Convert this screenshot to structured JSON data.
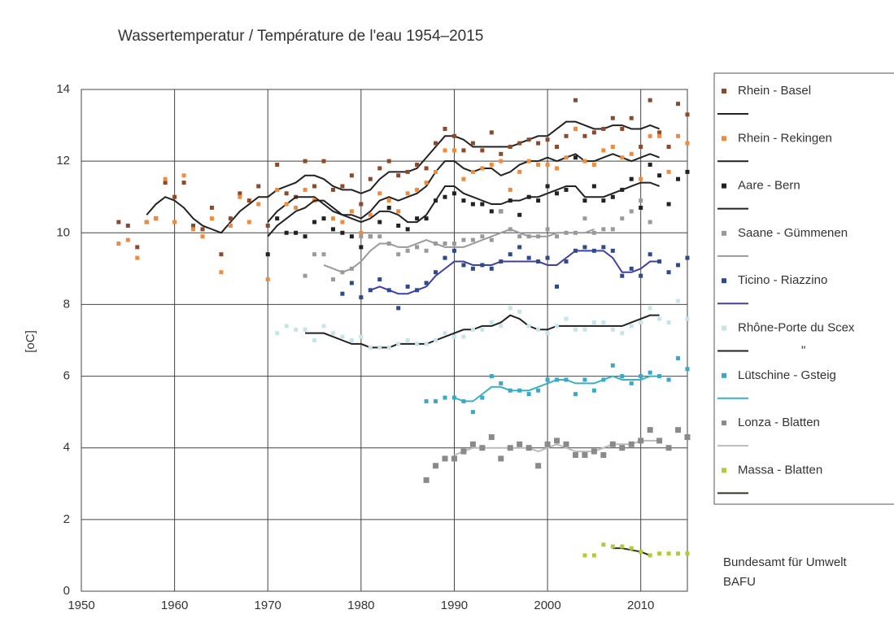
{
  "chart_data": {
    "type": "scatter",
    "title": "Wassertemperatur / Température de l'eau   1954–2015",
    "y_label": "[oC]",
    "source": [
      "Bundesamt für Umwelt",
      "BAFU"
    ],
    "xlim": [
      1950,
      2015
    ],
    "xticks": [
      1950,
      1960,
      1970,
      1980,
      1990,
      2000,
      2010
    ],
    "ylim": [
      0,
      14
    ],
    "yticks": [
      0,
      2,
      4,
      6,
      8,
      10,
      12,
      14
    ],
    "grid": true,
    "legend": "right",
    "series": [
      {
        "name": "Rhein - Basel",
        "color": "#8b4a2b",
        "trend_color": "#222222",
        "x": [
          1954,
          1955,
          1956,
          1957,
          1958,
          1959,
          1960,
          1961,
          1962,
          1963,
          1964,
          1965,
          1966,
          1967,
          1968,
          1969,
          1970,
          1971,
          1972,
          1973,
          1974,
          1975,
          1976,
          1977,
          1978,
          1979,
          1980,
          1981,
          1982,
          1983,
          1984,
          1985,
          1986,
          1987,
          1988,
          1989,
          1990,
          1991,
          1992,
          1993,
          1994,
          1995,
          1996,
          1997,
          1998,
          1999,
          2000,
          2001,
          2002,
          2003,
          2004,
          2005,
          2006,
          2007,
          2008,
          2009,
          2010,
          2011,
          2012,
          2013,
          2014,
          2015
        ],
        "values": [
          10.3,
          10.2,
          9.6,
          10.3,
          10.4,
          11.4,
          11.0,
          11.4,
          10.2,
          10.1,
          10.7,
          9.4,
          10.4,
          11.1,
          10.9,
          11.3,
          10.2,
          11.9,
          11.1,
          11.0,
          12.0,
          11.3,
          12.0,
          11.2,
          11.3,
          11.6,
          10.8,
          11.5,
          11.8,
          12.0,
          11.6,
          11.7,
          11.9,
          11.8,
          12.5,
          12.9,
          12.7,
          12.3,
          12.5,
          12.3,
          12.8,
          12.2,
          12.4,
          12.5,
          12.6,
          12.5,
          12.6,
          12.4,
          12.7,
          13.7,
          12.7,
          12.8,
          12.9,
          13.2,
          12.9,
          13.2,
          12.4,
          13.7,
          12.8,
          12.4,
          13.6,
          13.3
        ],
        "trend": [
          null,
          null,
          null,
          10.5,
          10.8,
          11.0,
          10.9,
          10.7,
          10.4,
          10.2,
          10.1,
          10.0,
          10.3,
          10.6,
          10.8,
          11.0,
          11.0,
          11.2,
          11.3,
          11.4,
          11.6,
          11.6,
          11.5,
          11.3,
          11.2,
          11.2,
          11.1,
          11.2,
          11.5,
          11.7,
          11.7,
          11.7,
          11.8,
          12.1,
          12.4,
          12.7,
          12.7,
          12.6,
          12.4,
          12.4,
          12.4,
          12.4,
          12.4,
          12.5,
          12.6,
          12.7,
          12.7,
          12.9,
          13.1,
          13.1,
          13.0,
          12.9,
          12.9,
          13.0,
          13.0,
          12.9,
          12.9,
          13.0,
          12.9,
          null,
          null,
          null
        ]
      },
      {
        "name": "Rhein - Rekingen",
        "color": "#f08a3c",
        "trend_color": "#222222",
        "x": [
          1954,
          1955,
          1956,
          1957,
          1958,
          1959,
          1960,
          1961,
          1962,
          1963,
          1964,
          1965,
          1966,
          1967,
          1968,
          1969,
          1970,
          1971,
          1972,
          1973,
          1974,
          1975,
          1976,
          1977,
          1978,
          1979,
          1980,
          1981,
          1982,
          1983,
          1984,
          1985,
          1986,
          1987,
          1988,
          1989,
          1990,
          1991,
          1992,
          1993,
          1994,
          1995,
          1996,
          1997,
          1998,
          1999,
          2000,
          2001,
          2002,
          2003,
          2004,
          2005,
          2006,
          2007,
          2008,
          2009,
          2010,
          2011,
          2012,
          2013,
          2014,
          2015
        ],
        "values": [
          9.7,
          9.8,
          9.3,
          10.3,
          10.4,
          11.5,
          10.3,
          11.6,
          10.1,
          9.9,
          10.4,
          8.9,
          10.2,
          11.0,
          10.3,
          10.8,
          8.7,
          11.2,
          10.8,
          10.7,
          11.2,
          10.9,
          10.4,
          10.4,
          10.3,
          10.6,
          10.0,
          10.5,
          11.1,
          10.9,
          10.6,
          11.1,
          11.2,
          11.4,
          11.7,
          12.3,
          12.3,
          11.5,
          11.7,
          11.8,
          11.9,
          12.0,
          11.2,
          11.7,
          12.0,
          11.9,
          11.9,
          11.8,
          12.1,
          12.9,
          12.0,
          11.9,
          12.3,
          12.4,
          12.1,
          12.2,
          11.5,
          12.7,
          12.7,
          11.7,
          12.7,
          12.5
        ],
        "trend": [
          null,
          null,
          null,
          null,
          null,
          null,
          null,
          null,
          null,
          null,
          null,
          null,
          null,
          null,
          null,
          null,
          10.3,
          10.6,
          10.8,
          11.0,
          11.0,
          11.0,
          10.8,
          10.6,
          10.5,
          10.5,
          10.4,
          10.6,
          10.9,
          11.0,
          10.9,
          11.0,
          11.1,
          11.3,
          11.7,
          12.0,
          12.0,
          11.8,
          11.7,
          11.8,
          11.8,
          11.6,
          11.7,
          11.9,
          12.0,
          12.0,
          12.1,
          12.0,
          12.1,
          12.2,
          12.0,
          12.0,
          12.1,
          12.2,
          12.1,
          12.0,
          12.1,
          12.2,
          12.1,
          null,
          null,
          null
        ]
      },
      {
        "name": "Aare - Bern",
        "color": "#222222",
        "trend_color": "#222222",
        "x": [
          1970,
          1971,
          1972,
          1973,
          1974,
          1975,
          1976,
          1977,
          1978,
          1979,
          1980,
          1981,
          1982,
          1983,
          1984,
          1985,
          1986,
          1987,
          1988,
          1989,
          1990,
          1991,
          1992,
          1993,
          1994,
          1995,
          1996,
          1997,
          1998,
          1999,
          2000,
          2001,
          2002,
          2003,
          2004,
          2005,
          2006,
          2007,
          2008,
          2009,
          2010,
          2011,
          2012,
          2013,
          2014,
          2015
        ],
        "values": [
          9.4,
          10.4,
          10.0,
          10.0,
          9.9,
          10.3,
          10.4,
          10.1,
          10.0,
          9.9,
          9.6,
          9.9,
          10.3,
          10.7,
          10.2,
          10.1,
          10.4,
          10.4,
          10.9,
          11.0,
          11.1,
          10.9,
          10.8,
          10.8,
          10.6,
          10.6,
          10.9,
          10.5,
          11.0,
          10.9,
          11.3,
          11.1,
          11.2,
          12.1,
          10.9,
          11.3,
          10.9,
          11.0,
          11.2,
          11.5,
          10.7,
          11.9,
          11.6,
          10.8,
          11.5,
          11.7
        ],
        "trend": [
          9.9,
          10.2,
          10.4,
          10.6,
          10.7,
          10.9,
          10.9,
          10.7,
          10.5,
          10.4,
          10.3,
          10.4,
          10.6,
          10.6,
          10.5,
          10.3,
          10.3,
          10.5,
          10.9,
          11.3,
          11.3,
          11.1,
          11.0,
          10.9,
          10.8,
          10.8,
          10.9,
          10.9,
          11.0,
          11.0,
          11.1,
          11.2,
          11.3,
          11.3,
          11.0,
          11.0,
          11.0,
          11.1,
          11.2,
          11.3,
          11.4,
          11.4,
          11.3,
          null,
          null,
          null
        ]
      },
      {
        "name": "Saane - Gümmenen",
        "color": "#9a9a9a",
        "trend_color": "#9a9a9a",
        "x": [
          1974,
          1975,
          1976,
          1977,
          1978,
          1979,
          1980,
          1981,
          1982,
          1983,
          1984,
          1985,
          1986,
          1987,
          1988,
          1989,
          1990,
          1991,
          1992,
          1993,
          1994,
          1995,
          1996,
          1997,
          1998,
          1999,
          2000,
          2001,
          2002,
          2003,
          2004,
          2005,
          2006,
          2007,
          2008,
          2009,
          2010,
          2011
        ],
        "values": [
          8.8,
          9.4,
          9.4,
          8.7,
          8.9,
          9.0,
          9.9,
          9.9,
          9.9,
          9.7,
          9.4,
          9.5,
          9.6,
          9.5,
          9.7,
          9.7,
          9.7,
          9.8,
          9.8,
          9.9,
          9.8,
          10.6,
          10.1,
          9.9,
          9.9,
          9.9,
          10.1,
          9.9,
          10.0,
          10.0,
          10.4,
          10.0,
          10.1,
          10.1,
          10.4,
          10.6,
          10.9,
          10.3
        ],
        "trend": [
          null,
          null,
          9.1,
          9.0,
          8.9,
          9.0,
          9.2,
          9.5,
          9.7,
          9.7,
          9.6,
          9.6,
          9.7,
          9.8,
          9.7,
          9.6,
          9.6,
          9.6,
          9.7,
          9.8,
          9.9,
          10.0,
          10.1,
          10.0,
          9.9,
          9.9,
          9.9,
          10.0,
          10.0,
          10.0,
          10.0,
          10.1,
          null,
          null,
          null,
          null,
          null,
          null
        ]
      },
      {
        "name": "Ticino - Riazzino",
        "color": "#2c4a8c",
        "trend_color": "#4040a0",
        "x": [
          1978,
          1979,
          1980,
          1981,
          1982,
          1983,
          1984,
          1985,
          1986,
          1987,
          1988,
          1989,
          1990,
          1991,
          1992,
          1993,
          1994,
          1995,
          1996,
          1997,
          1998,
          1999,
          2000,
          2001,
          2002,
          2003,
          2004,
          2005,
          2006,
          2007,
          2008,
          2009,
          2010,
          2011,
          2012,
          2013,
          2014,
          2015
        ],
        "values": [
          8.3,
          8.6,
          8.2,
          8.4,
          8.7,
          8.4,
          7.9,
          8.5,
          8.4,
          8.6,
          8.9,
          9.3,
          9.5,
          9.1,
          9.0,
          9.1,
          9.0,
          9.2,
          9.4,
          9.6,
          9.3,
          9.2,
          9.3,
          8.5,
          9.2,
          9.5,
          9.6,
          9.5,
          9.6,
          9.5,
          8.8,
          9.0,
          8.8,
          9.4,
          9.2,
          8.9,
          9.1,
          9.3
        ],
        "trend": [
          null,
          null,
          null,
          8.4,
          8.5,
          8.4,
          8.3,
          8.3,
          8.4,
          8.5,
          8.8,
          9.0,
          9.2,
          9.2,
          9.1,
          9.1,
          9.1,
          9.2,
          9.2,
          9.2,
          9.2,
          9.2,
          9.1,
          9.1,
          9.3,
          9.5,
          9.5,
          9.5,
          9.5,
          9.3,
          8.9,
          8.9,
          9.0,
          9.2,
          9.2,
          null,
          null,
          null
        ]
      },
      {
        "name": "Rhône-Porte du Scex",
        "color": "#c6e4ea",
        "trend_color": "#222222",
        "legend_note": "\"",
        "x": [
          1971,
          1972,
          1973,
          1974,
          1975,
          1976,
          1977,
          1978,
          1979,
          1980,
          1981,
          1982,
          1983,
          1984,
          1985,
          1986,
          1987,
          1988,
          1989,
          1990,
          1991,
          1992,
          1993,
          1994,
          1995,
          1996,
          1997,
          1998,
          1999,
          2000,
          2001,
          2002,
          2003,
          2004,
          2005,
          2006,
          2007,
          2008,
          2009,
          2010,
          2011,
          2012,
          2013,
          2014,
          2015
        ],
        "values": [
          7.2,
          7.4,
          7.3,
          7.3,
          7.0,
          7.4,
          7.2,
          7.1,
          7.0,
          7.1,
          6.8,
          6.8,
          6.8,
          6.9,
          7.0,
          6.9,
          6.9,
          7.0,
          7.2,
          7.1,
          7.1,
          7.3,
          7.3,
          7.5,
          7.4,
          7.9,
          7.8,
          7.4,
          7.3,
          7.2,
          7.4,
          7.6,
          7.3,
          7.3,
          7.5,
          7.5,
          7.3,
          7.2,
          7.4,
          7.5,
          7.9,
          7.6,
          7.5,
          8.1,
          7.6
        ],
        "trend": [
          null,
          null,
          null,
          7.2,
          7.2,
          7.2,
          7.1,
          7.0,
          6.9,
          6.9,
          6.8,
          6.8,
          6.8,
          6.9,
          6.9,
          6.9,
          6.9,
          7.0,
          7.1,
          7.2,
          7.3,
          7.3,
          7.4,
          7.4,
          7.5,
          7.7,
          7.6,
          7.4,
          7.3,
          7.3,
          7.4,
          7.4,
          7.4,
          7.4,
          7.4,
          7.4,
          7.4,
          7.4,
          7.5,
          7.6,
          7.7,
          7.7,
          null,
          null,
          null
        ]
      },
      {
        "name": "Lütschine - Gsteig",
        "color": "#3aa8c8",
        "trend_color": "#3ab0c0",
        "x": [
          1987,
          1988,
          1989,
          1990,
          1991,
          1992,
          1993,
          1994,
          1995,
          1996,
          1997,
          1998,
          1999,
          2000,
          2001,
          2002,
          2003,
          2004,
          2005,
          2006,
          2007,
          2008,
          2009,
          2010,
          2011,
          2012,
          2013,
          2014,
          2015
        ],
        "values": [
          5.3,
          5.3,
          5.4,
          5.4,
          5.3,
          5.0,
          5.4,
          6.0,
          5.8,
          5.6,
          5.6,
          5.5,
          5.6,
          5.9,
          5.9,
          5.9,
          5.5,
          5.9,
          5.6,
          5.9,
          6.3,
          6.0,
          5.8,
          6.0,
          6.1,
          6.0,
          5.9,
          6.5,
          6.2
        ],
        "trend": [
          null,
          null,
          null,
          5.4,
          5.3,
          5.3,
          5.5,
          5.7,
          5.7,
          5.6,
          5.6,
          5.6,
          5.7,
          5.8,
          5.9,
          5.9,
          5.8,
          5.8,
          5.8,
          5.9,
          6.0,
          5.9,
          5.9,
          5.9,
          6.0,
          6.0,
          null,
          null,
          null
        ]
      },
      {
        "name": "Lonza - Blatten",
        "color": "#8a8a8a",
        "trend_color": "#bbbbbb",
        "x": [
          1987,
          1988,
          1989,
          1990,
          1991,
          1992,
          1993,
          1994,
          1995,
          1996,
          1997,
          1998,
          1999,
          2000,
          2001,
          2002,
          2003,
          2004,
          2005,
          2006,
          2007,
          2008,
          2009,
          2010,
          2011,
          2012,
          2013,
          2014,
          2015
        ],
        "values": [
          3.1,
          3.5,
          3.7,
          3.7,
          3.9,
          4.1,
          4.0,
          4.3,
          3.7,
          4.0,
          4.1,
          4.0,
          3.5,
          4.1,
          4.2,
          4.1,
          3.8,
          3.8,
          3.9,
          3.8,
          4.1,
          4.0,
          4.1,
          4.2,
          4.5,
          4.2,
          4.0,
          4.5,
          4.3
        ],
        "trend": [
          null,
          null,
          null,
          3.8,
          3.9,
          4.0,
          4.0,
          4.0,
          4.0,
          4.0,
          4.0,
          4.0,
          3.9,
          4.0,
          4.1,
          4.0,
          3.9,
          3.9,
          3.9,
          4.0,
          4.1,
          4.1,
          4.1,
          4.2,
          4.2,
          4.2,
          null,
          null,
          null
        ]
      },
      {
        "name": "Massa - Blatten",
        "color": "#b5c93a",
        "trend_color": "#333322",
        "x": [
          2004,
          2005,
          2006,
          2007,
          2008,
          2009,
          2010,
          2011,
          2012,
          2013,
          2014,
          2015
        ],
        "values": [
          1.0,
          1.0,
          1.3,
          1.25,
          1.25,
          1.2,
          1.1,
          1.0,
          1.05,
          1.05,
          1.05,
          1.05
        ],
        "trend": [
          null,
          null,
          null,
          1.2,
          1.2,
          1.15,
          1.1,
          1.0,
          null,
          null,
          null,
          null
        ]
      }
    ]
  }
}
